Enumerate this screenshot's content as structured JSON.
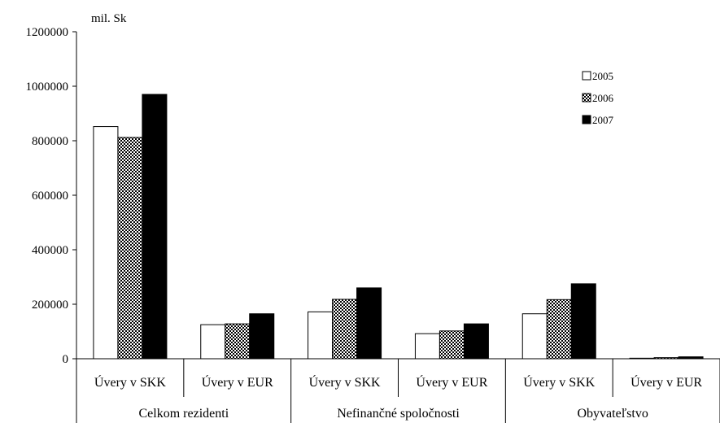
{
  "chart_data": {
    "type": "bar",
    "unit_label": "mil. Sk",
    "ylim": [
      0,
      1200000
    ],
    "yticks": [
      0,
      200000,
      400000,
      600000,
      800000,
      1000000,
      1200000
    ],
    "ytick_labels": [
      "0",
      "200000",
      "400000",
      "600000",
      "800000",
      "1000000",
      "1200000"
    ],
    "groups": [
      {
        "label": "Celkom rezidenti",
        "categories": [
          "Úvery v SKK",
          "Úvery v EUR"
        ]
      },
      {
        "label": "Nefinančné spoločnosti",
        "categories": [
          "Úvery v SKK",
          "Úvery v EUR"
        ]
      },
      {
        "label": "Obyvateľstvo",
        "categories": [
          "Úvery v SKK",
          "Úvery v EUR"
        ]
      }
    ],
    "categories": [
      "Úvery v SKK",
      "Úvery v EUR",
      "Úvery v SKK",
      "Úvery v EUR",
      "Úvery v SKK",
      "Úvery v EUR"
    ],
    "series": [
      {
        "name": "2005",
        "fill": "white",
        "values": [
          852000,
          125000,
          172000,
          92000,
          165000,
          2000
        ]
      },
      {
        "name": "2006",
        "fill": "checker",
        "values": [
          812000,
          128000,
          218000,
          102000,
          217000,
          4000
        ]
      },
      {
        "name": "2007",
        "fill": "black",
        "values": [
          970000,
          165000,
          260000,
          128000,
          275000,
          7000
        ]
      }
    ],
    "legend_position": "top-right",
    "grid": false
  }
}
